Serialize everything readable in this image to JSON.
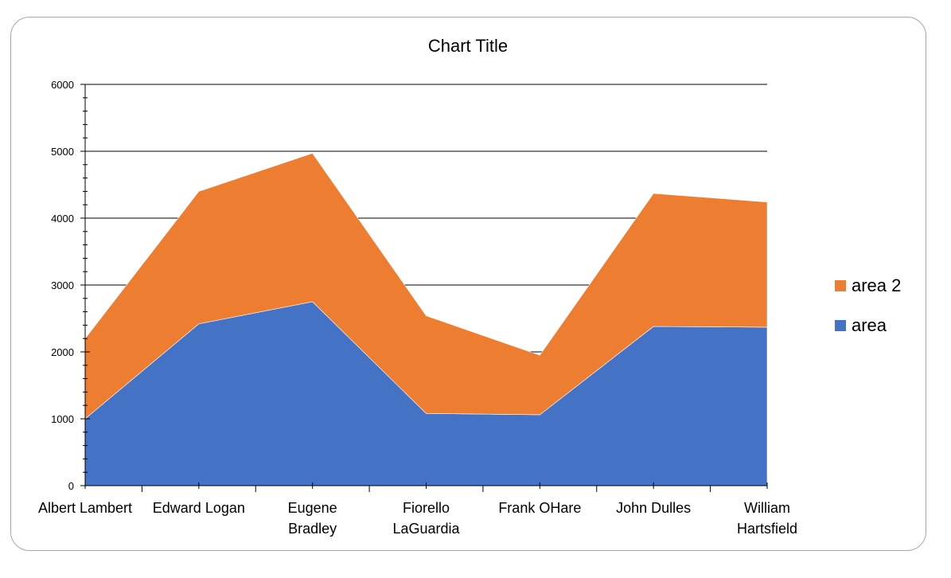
{
  "chart_data": {
    "type": "area",
    "stacked": true,
    "title": "Chart Title",
    "categories": [
      [
        "Albert Lambert"
      ],
      [
        "Edward Logan"
      ],
      [
        "Eugene",
        "Bradley"
      ],
      [
        "Fiorello",
        "LaGuardia"
      ],
      [
        "Frank OHare"
      ],
      [
        "John Dulles"
      ],
      [
        "William",
        "Hartsfield"
      ]
    ],
    "series": [
      {
        "name": "area",
        "color": "#4472c4",
        "values": [
          1000,
          2420,
          2750,
          1080,
          1060,
          2380,
          2370
        ]
      },
      {
        "name": "area 2",
        "color": "#ed7d31",
        "values": [
          1200,
          1980,
          2220,
          1460,
          890,
          1990,
          1870
        ]
      }
    ],
    "ylim": [
      0,
      6000
    ],
    "yticks": [
      0,
      1000,
      2000,
      3000,
      4000,
      5000,
      6000
    ],
    "grid": true,
    "legend": "right",
    "xlabel": "",
    "ylabel": ""
  }
}
